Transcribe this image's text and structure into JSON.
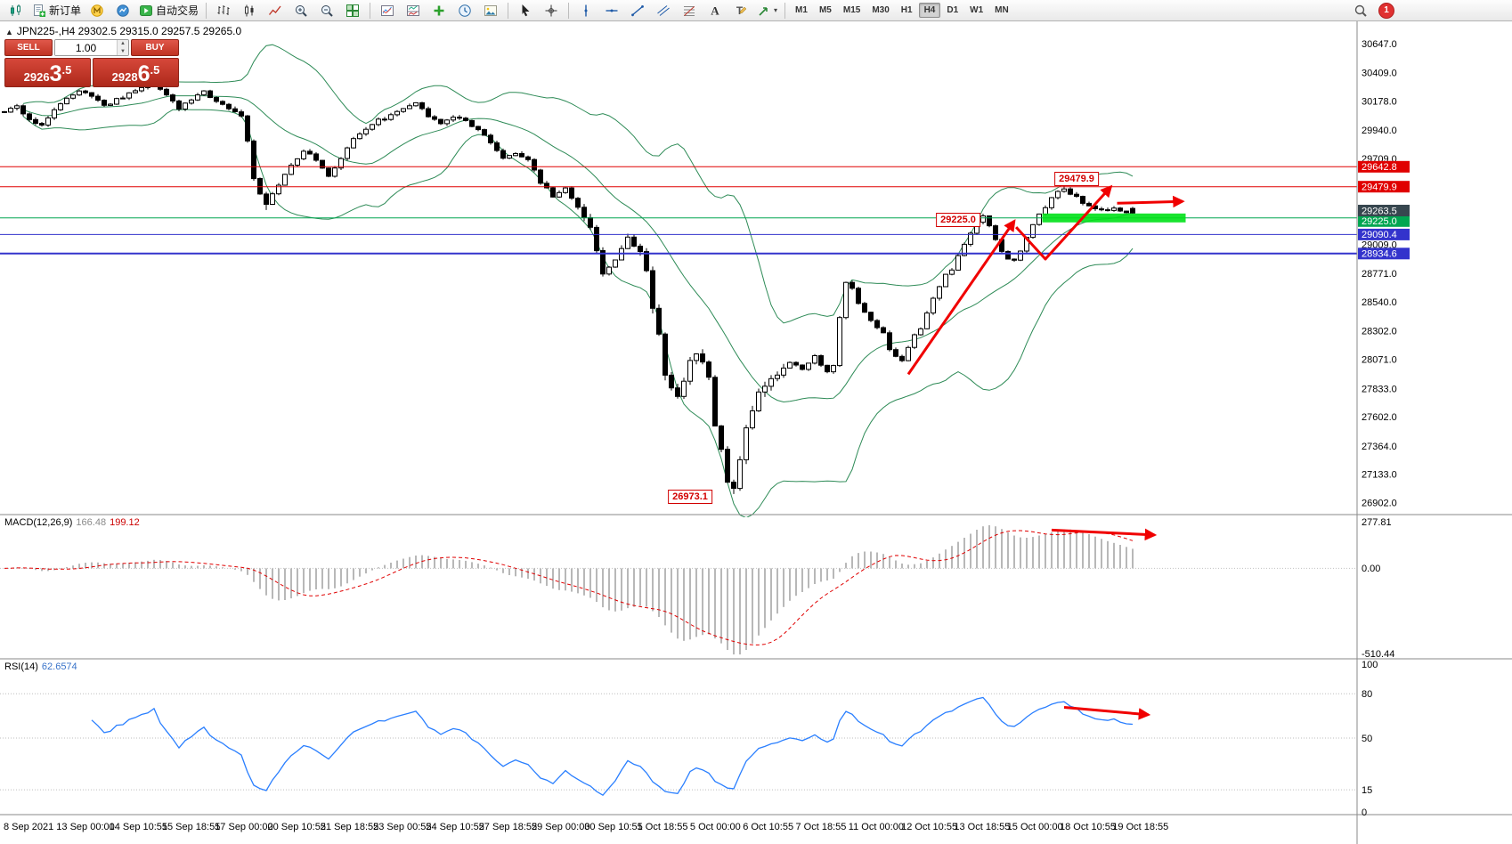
{
  "toolbar": {
    "groups": [
      {
        "name": "trade",
        "items": [
          {
            "name": "chart-window-icon",
            "icon": "chart-candles"
          },
          {
            "name": "new-order-button",
            "icon": "new-order",
            "label": "新订单"
          },
          {
            "name": "metaeditor-icon",
            "icon": "mql"
          },
          {
            "name": "market-watch-icon",
            "icon": "market-watch"
          },
          {
            "name": "autotrading-button",
            "icon": "autotrade-play",
            "label": "自动交易"
          }
        ]
      },
      {
        "name": "chart-type",
        "items": [
          {
            "name": "bar-chart-button",
            "icon": "bars-chart"
          },
          {
            "name": "candlestick-chart-button",
            "icon": "candle-chart"
          },
          {
            "name": "line-chart-button",
            "icon": "line-chart"
          },
          {
            "name": "zoom-in-button",
            "icon": "zoom-in"
          },
          {
            "name": "zoom-out-button",
            "icon": "zoom-out"
          },
          {
            "name": "tile-windows-button",
            "icon": "tile-windows"
          }
        ]
      },
      {
        "name": "indicators",
        "items": [
          {
            "name": "indicators-button",
            "icon": "indicator-list"
          },
          {
            "name": "indicator-windows-button",
            "icon": "indicator-window"
          },
          {
            "name": "add-indicator-button",
            "icon": "add-indicator"
          },
          {
            "name": "periods-button",
            "icon": "period-clock"
          },
          {
            "name": "templates-button",
            "icon": "template"
          }
        ]
      },
      {
        "name": "cursor",
        "items": [
          {
            "name": "cursor-button",
            "icon": "cursor"
          },
          {
            "name": "crosshair-button",
            "icon": "crosshair"
          }
        ]
      },
      {
        "name": "objects",
        "items": [
          {
            "name": "vertical-line-button",
            "icon": "vline"
          },
          {
            "name": "horizontal-line-button",
            "icon": "hline"
          },
          {
            "name": "trendline-button",
            "icon": "trendline"
          },
          {
            "name": "channel-button",
            "icon": "channel"
          },
          {
            "name": "fibonacci-button",
            "icon": "fibonacci"
          },
          {
            "name": "text-button",
            "icon": "text"
          },
          {
            "name": "label-button",
            "icon": "label"
          },
          {
            "name": "shapes-button",
            "icon": "shapes",
            "caret": true
          }
        ]
      }
    ],
    "timeframes": [
      "M1",
      "M5",
      "M15",
      "M30",
      "H1",
      "H4",
      "D1",
      "W1",
      "MN"
    ],
    "active_timeframe": "H4",
    "right_items": [
      {
        "name": "search-icon",
        "icon": "search"
      },
      {
        "name": "notifications-badge",
        "icon": "badge",
        "label": "1"
      }
    ]
  },
  "chart": {
    "collapse_glyph": "▲",
    "title_text": "JPN225-,H4  29302.5 29315.0 29257.5 29265.0",
    "one_click": {
      "sell_label": "SELL",
      "buy_label": "BUY",
      "volume": "1.00",
      "sell_price": {
        "small": "2926",
        "big": "3",
        "frac": ".5"
      },
      "buy_price": {
        "small": "2928",
        "big": "6",
        "frac": ".5"
      }
    }
  },
  "chart_data": {
    "type": "candlestick",
    "symbol": "JPN225-",
    "timeframe": "H4",
    "ohlc_display": {
      "open": "29302.5",
      "high": "29315.0",
      "low": "29257.5",
      "close": "29265.0"
    },
    "candles": {
      "count": 182,
      "close_anchors": [
        [
          0,
          30080
        ],
        [
          2,
          30150
        ],
        [
          4,
          30020
        ],
        [
          6,
          29980
        ],
        [
          8,
          30120
        ],
        [
          10,
          30200
        ],
        [
          12,
          30260
        ],
        [
          14,
          30220
        ],
        [
          16,
          30140
        ],
        [
          18,
          30190
        ],
        [
          20,
          30240
        ],
        [
          22,
          30280
        ],
        [
          24,
          30330
        ],
        [
          26,
          30230
        ],
        [
          28,
          30120
        ],
        [
          30,
          30180
        ],
        [
          32,
          30260
        ],
        [
          34,
          30180
        ],
        [
          36,
          30120
        ],
        [
          38,
          30060
        ],
        [
          39,
          29850
        ],
        [
          40,
          29550
        ],
        [
          41,
          29420
        ],
        [
          42,
          29340
        ],
        [
          44,
          29480
        ],
        [
          46,
          29660
        ],
        [
          48,
          29770
        ],
        [
          50,
          29700
        ],
        [
          52,
          29560
        ],
        [
          54,
          29720
        ],
        [
          56,
          29870
        ],
        [
          58,
          29960
        ],
        [
          60,
          30020
        ],
        [
          62,
          30060
        ],
        [
          64,
          30110
        ],
        [
          66,
          30160
        ],
        [
          68,
          30060
        ],
        [
          70,
          29990
        ],
        [
          72,
          30060
        ],
        [
          74,
          30010
        ],
        [
          76,
          29950
        ],
        [
          78,
          29830
        ],
        [
          80,
          29710
        ],
        [
          82,
          29760
        ],
        [
          84,
          29690
        ],
        [
          86,
          29520
        ],
        [
          88,
          29400
        ],
        [
          90,
          29470
        ],
        [
          92,
          29310
        ],
        [
          94,
          29140
        ],
        [
          95,
          28960
        ],
        [
          96,
          28760
        ],
        [
          98,
          28870
        ],
        [
          100,
          29060
        ],
        [
          101,
          29000
        ],
        [
          102,
          28940
        ],
        [
          103,
          28790
        ],
        [
          104,
          28480
        ],
        [
          105,
          28280
        ],
        [
          106,
          27940
        ],
        [
          107,
          27840
        ],
        [
          108,
          27760
        ],
        [
          109,
          27900
        ],
        [
          110,
          28060
        ],
        [
          111,
          28110
        ],
        [
          112,
          28040
        ],
        [
          113,
          27930
        ],
        [
          114,
          27540
        ],
        [
          115,
          27330
        ],
        [
          116,
          27080
        ],
        [
          117,
          27010
        ],
        [
          118,
          27260
        ],
        [
          119,
          27510
        ],
        [
          120,
          27660
        ],
        [
          121,
          27800
        ],
        [
          122,
          27860
        ],
        [
          123,
          27910
        ],
        [
          124,
          27950
        ],
        [
          126,
          28050
        ],
        [
          128,
          28000
        ],
        [
          130,
          28090
        ],
        [
          132,
          27960
        ],
        [
          133,
          28010
        ],
        [
          134,
          28420
        ],
        [
          135,
          28690
        ],
        [
          136,
          28640
        ],
        [
          137,
          28540
        ],
        [
          138,
          28450
        ],
        [
          139,
          28400
        ],
        [
          140,
          28340
        ],
        [
          141,
          28290
        ],
        [
          142,
          28160
        ],
        [
          143,
          28100
        ],
        [
          144,
          28060
        ],
        [
          145,
          28160
        ],
        [
          146,
          28260
        ],
        [
          147,
          28310
        ],
        [
          148,
          28460
        ],
        [
          149,
          28560
        ],
        [
          150,
          28660
        ],
        [
          151,
          28760
        ],
        [
          152,
          28810
        ],
        [
          153,
          28910
        ],
        [
          154,
          29010
        ],
        [
          155,
          29110
        ],
        [
          156,
          29190
        ],
        [
          157,
          29230
        ],
        [
          158,
          29150
        ],
        [
          159,
          29050
        ],
        [
          160,
          28950
        ],
        [
          161,
          28900
        ],
        [
          162,
          28880
        ],
        [
          163,
          28960
        ],
        [
          164,
          29060
        ],
        [
          165,
          29160
        ],
        [
          166,
          29260
        ],
        [
          167,
          29310
        ],
        [
          168,
          29390
        ],
        [
          169,
          29440
        ],
        [
          170,
          29470
        ],
        [
          171,
          29430
        ],
        [
          172,
          29400
        ],
        [
          173,
          29350
        ],
        [
          174,
          29330
        ],
        [
          175,
          29300
        ],
        [
          176,
          29280
        ],
        [
          177,
          29290
        ],
        [
          178,
          29310
        ],
        [
          179,
          29285
        ],
        [
          180,
          29272
        ],
        [
          181,
          29265
        ]
      ],
      "overrides": {
        "24": {
          "high": 30455
        },
        "42": {
          "low": 29290
        },
        "117": {
          "low": 26973.1
        },
        "170": {
          "high": 29492
        },
        "181": {
          "open": 29302.5,
          "high": 29315.0,
          "low": 29257.5,
          "close": 29265.0
        }
      }
    },
    "bollinger": {
      "period": 20,
      "deviation": 2,
      "color": "#2e8b57"
    },
    "hlines": [
      {
        "label": "29642.8",
        "price": 29642.8,
        "color": "#e00000",
        "width": 1
      },
      {
        "label": "29479.9",
        "price": 29479.9,
        "color": "#e00000",
        "width": 1
      },
      {
        "label": "29225.0",
        "price": 29225.0,
        "color": "#00a651",
        "width": 1
      },
      {
        "label": "29090.4",
        "price": 29090.4,
        "color": "#3333cc",
        "width": 1
      },
      {
        "label": "28934.6",
        "price": 28934.6,
        "color": "#3333cc",
        "width": 2
      }
    ],
    "current_price_badge": {
      "value": "29263.5",
      "price": 29263.5,
      "color": "#37474f"
    },
    "green_zone": {
      "price": 29225.0,
      "from_bar": 166.5,
      "to_bar": 189.5,
      "color": "#00e118",
      "half_height": 5
    },
    "price_labels": [
      {
        "text": "29479.9",
        "bar": 172,
        "price": 29545
      },
      {
        "text": "29225.0",
        "bar": 153,
        "price": 29213
      },
      {
        "text": "26973.1",
        "bar": 110,
        "price": 26952
      }
    ],
    "arrows": [
      {
        "pane": "main",
        "points": [
          [
            145,
            27950
          ],
          [
            162,
            29200
          ]
        ],
        "head": true
      },
      {
        "pane": "main",
        "points": [
          [
            162.3,
            29150
          ],
          [
            167,
            28890
          ],
          [
            177.5,
            29480
          ]
        ],
        "head": true
      },
      {
        "pane": "main",
        "points": [
          [
            178.5,
            29345
          ],
          [
            189,
            29360
          ]
        ],
        "head": true
      },
      {
        "pane": "macd",
        "points": [
          [
            168,
            229
          ],
          [
            184.5,
            200
          ]
        ],
        "head": true
      },
      {
        "pane": "rsi",
        "points": [
          [
            170,
            70.8
          ],
          [
            183.5,
            65.8
          ]
        ],
        "head": true
      }
    ],
    "price_axis": {
      "min": 26820,
      "max": 30785,
      "plain_labels": [
        "30647.0",
        "30409.0",
        "30178.0",
        "29940.0",
        "29709.0",
        "29009.0",
        "28771.0",
        "28540.0",
        "28302.0",
        "28071.0",
        "27833.0",
        "27602.0",
        "27364.0",
        "27133.0",
        "26902.0"
      ]
    },
    "indicators": {
      "macd": {
        "name": "MACD(12,26,9)",
        "main_value": "166.48",
        "signal_value": "199.12",
        "fast": 12,
        "slow": 26,
        "signal": 9,
        "axis_labels": [
          "277.81",
          "0.00",
          "-510.44"
        ],
        "range": [
          290,
          -520
        ],
        "hist_color": "#b8b8b8",
        "signal_color": "#e00000"
      },
      "rsi": {
        "name": "RSI(14)",
        "value": "62.6574",
        "period": 14,
        "axis_labels": [
          "100",
          "80",
          "50",
          "15",
          "0"
        ],
        "levels": [
          80,
          50,
          15
        ],
        "color": "#2a7fff"
      }
    },
    "time_axis": {
      "labels": [
        "8 Sep 2021",
        "13 Sep 00:00",
        "14 Sep 10:55",
        "15 Sep 18:55",
        "17 Sep 00:00",
        "20 Sep 10:55",
        "21 Sep 18:55",
        "23 Sep 00:55",
        "24 Sep 10:55",
        "27 Sep 18:55",
        "29 Sep 00:00",
        "30 Sep 10:55",
        "1 Oct 18:55",
        "5 Oct 00:00",
        "6 Oct 10:55",
        "7 Oct 18:55",
        "11 Oct 00:00",
        "12 Oct 10:55",
        "13 Oct 18:55",
        "15 Oct 00:00",
        "18 Oct 10:55",
        "19 Oct 18:55"
      ]
    }
  }
}
